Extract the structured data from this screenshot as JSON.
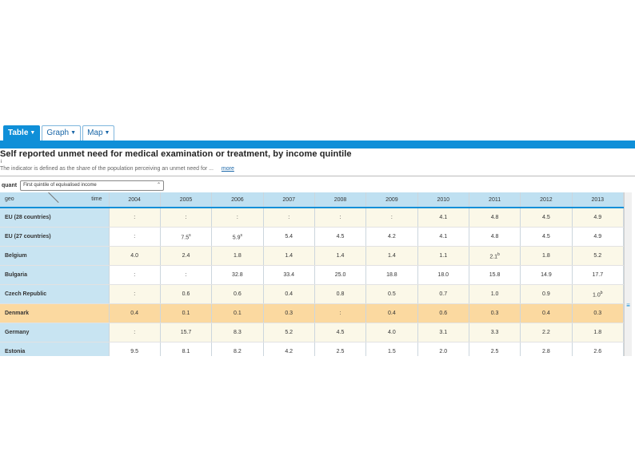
{
  "tabs": [
    {
      "label": "Table",
      "active": true
    },
    {
      "label": "Graph",
      "active": false
    },
    {
      "label": "Map",
      "active": false
    }
  ],
  "title": "Self reported unmet need for medical examination or treatment, by income quintile",
  "description": {
    "mark": "i",
    "text": "The indicator is defined as the share of the population perceiving an unmet need for ...",
    "more": "more"
  },
  "filter": {
    "label": "quant",
    "value": "First quintile of equivalised income"
  },
  "table": {
    "corner_geo": "geo",
    "corner_time": "time",
    "years": [
      "2004",
      "2005",
      "2006",
      "2007",
      "2008",
      "2009",
      "2010",
      "2011",
      "2012",
      "2013"
    ],
    "rows": [
      {
        "label": "EU (28 countries)",
        "values": [
          ":",
          ":",
          ":",
          ":",
          ":",
          ":",
          "4.1",
          "4.8",
          "4.5",
          "4.9"
        ],
        "flags": [
          "",
          "",
          "",
          "",
          "",
          "",
          "",
          "",
          "",
          ""
        ]
      },
      {
        "label": "EU (27 countries)",
        "values": [
          ":",
          "7.5",
          "5.9",
          "5.4",
          "4.5",
          "4.2",
          "4.1",
          "4.8",
          "4.5",
          "4.9"
        ],
        "flags": [
          "",
          "s",
          "s",
          "",
          "",
          "",
          "",
          "",
          "",
          ""
        ]
      },
      {
        "label": "Belgium",
        "values": [
          "4.0",
          "2.4",
          "1.8",
          "1.4",
          "1.4",
          "1.4",
          "1.1",
          "2.1",
          "1.8",
          "5.2"
        ],
        "flags": [
          "",
          "",
          "",
          "",
          "",
          "",
          "",
          "b",
          "",
          ""
        ]
      },
      {
        "label": "Bulgaria",
        "values": [
          ":",
          ":",
          "32.8",
          "33.4",
          "25.0",
          "18.8",
          "18.0",
          "15.8",
          "14.9",
          "17.7"
        ],
        "flags": [
          "",
          "",
          "",
          "",
          "",
          "",
          "",
          "",
          "",
          ""
        ]
      },
      {
        "label": "Czech Republic",
        "values": [
          ":",
          "0.6",
          "0.6",
          "0.4",
          "0.8",
          "0.5",
          "0.7",
          "1.0",
          "0.9",
          "1.0"
        ],
        "flags": [
          "",
          "",
          "",
          "",
          "",
          "",
          "",
          "",
          "",
          "b"
        ]
      },
      {
        "label": "Denmark",
        "values": [
          "0.4",
          "0.1",
          "0.1",
          "0.3",
          ":",
          "0.4",
          "0.6",
          "0.3",
          "0.4",
          "0.3"
        ],
        "flags": [
          "",
          "",
          "",
          "",
          "",
          "",
          "",
          "",
          "",
          ""
        ]
      },
      {
        "label": "Germany",
        "values": [
          ":",
          "15.7",
          "8.3",
          "5.2",
          "4.5",
          "4.0",
          "3.1",
          "3.3",
          "2.2",
          "1.8"
        ],
        "flags": [
          "",
          "",
          "",
          "",
          "",
          "",
          "",
          "",
          "",
          ""
        ]
      },
      {
        "label": "Estonia",
        "values": [
          "9.5",
          "8.1",
          "8.2",
          "4.2",
          "2.5",
          "1.5",
          "2.0",
          "2.5",
          "2.8",
          "2.6"
        ],
        "flags": [
          "",
          "",
          "",
          "",
          "",
          "",
          "",
          "",
          "",
          ""
        ]
      }
    ]
  },
  "scrollbar": {
    "thumb": "≡"
  },
  "colors": {
    "accent": "#0f8fd8",
    "header": "#bfe0f1",
    "rowlabel": "#c8e4f2",
    "highlight": "#fbd9a0",
    "odd": "#fbf8e8"
  }
}
